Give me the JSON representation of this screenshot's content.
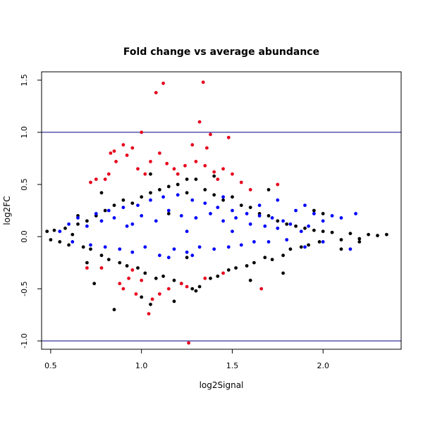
{
  "chart_data": {
    "type": "scatter",
    "title": "Fold change vs average abundance",
    "xlabel": "log2Signal",
    "ylabel": "log2FC",
    "xlim": [
      0.45,
      2.43
    ],
    "ylim": [
      -1.08,
      1.58
    ],
    "x_ticks": [
      0.5,
      1.0,
      1.5,
      2.0
    ],
    "x_tick_labels": [
      "0.5",
      "1.0",
      "1.5",
      "2.0"
    ],
    "y_ticks": [
      -1.0,
      -0.5,
      0.0,
      0.5,
      1.0,
      1.5
    ],
    "y_tick_labels": [
      "-1.0",
      "-0.5",
      "0.0",
      "0.5",
      "1.0",
      "1.5"
    ],
    "grid": false,
    "legend": "none",
    "reference_lines": [
      {
        "axis": "y",
        "value": 1.0,
        "color": "#000080"
      },
      {
        "axis": "y",
        "value": -1.0,
        "color": "#000080"
      }
    ],
    "series": [
      {
        "color": "#000000",
        "points": [
          [
            0.48,
            0.05
          ],
          [
            0.5,
            -0.03
          ],
          [
            0.52,
            0.06
          ],
          [
            0.55,
            -0.05
          ],
          [
            0.58,
            0.08
          ],
          [
            0.6,
            -0.08
          ],
          [
            0.62,
            0.02
          ],
          [
            0.65,
            0.12
          ],
          [
            0.68,
            -0.1
          ],
          [
            0.7,
            0.15
          ],
          [
            0.72,
            -0.12
          ],
          [
            0.75,
            0.2
          ],
          [
            0.78,
            -0.18
          ],
          [
            0.8,
            0.25
          ],
          [
            0.82,
            -0.22
          ],
          [
            0.85,
            0.3
          ],
          [
            0.88,
            -0.25
          ],
          [
            0.9,
            0.35
          ],
          [
            0.92,
            -0.28
          ],
          [
            0.95,
            0.32
          ],
          [
            0.98,
            -0.3
          ],
          [
            1.0,
            0.38
          ],
          [
            1.02,
            -0.35
          ],
          [
            1.05,
            0.42
          ],
          [
            1.08,
            -0.4
          ],
          [
            1.1,
            0.45
          ],
          [
            1.12,
            -0.38
          ],
          [
            1.15,
            0.48
          ],
          [
            1.18,
            -0.42
          ],
          [
            1.2,
            0.5
          ],
          [
            1.22,
            -0.45
          ],
          [
            1.25,
            0.42
          ],
          [
            1.28,
            -0.5
          ],
          [
            1.3,
            0.55
          ],
          [
            1.32,
            -0.48
          ],
          [
            1.35,
            0.45
          ],
          [
            1.38,
            -0.4
          ],
          [
            1.4,
            0.4
          ],
          [
            1.42,
            -0.38
          ],
          [
            1.45,
            0.35
          ],
          [
            1.48,
            -0.32
          ],
          [
            1.5,
            0.38
          ],
          [
            1.52,
            -0.3
          ],
          [
            1.55,
            0.3
          ],
          [
            1.58,
            -0.28
          ],
          [
            1.6,
            0.28
          ],
          [
            1.62,
            -0.25
          ],
          [
            1.65,
            0.22
          ],
          [
            1.68,
            -0.2
          ],
          [
            1.7,
            0.2
          ],
          [
            1.72,
            -0.22
          ],
          [
            1.75,
            0.15
          ],
          [
            1.78,
            -0.18
          ],
          [
            1.8,
            0.12
          ],
          [
            1.82,
            -0.12
          ],
          [
            1.85,
            0.1
          ],
          [
            1.88,
            -0.1
          ],
          [
            1.9,
            0.08
          ],
          [
            1.92,
            -0.08
          ],
          [
            1.95,
            0.06
          ],
          [
            1.98,
            -0.05
          ],
          [
            2.0,
            0.05
          ],
          [
            2.05,
            0.04
          ],
          [
            2.1,
            -0.03
          ],
          [
            2.15,
            0.03
          ],
          [
            2.2,
            -0.02
          ],
          [
            2.25,
            0.02
          ],
          [
            2.3,
            0.01
          ],
          [
            2.35,
            0.02
          ],
          [
            0.85,
            -0.7
          ],
          [
            1.05,
            -0.65
          ],
          [
            1.18,
            -0.62
          ],
          [
            0.74,
            -0.45
          ],
          [
            0.78,
            0.42
          ],
          [
            1.05,
            0.6
          ],
          [
            1.25,
            0.55
          ],
          [
            1.4,
            0.58
          ],
          [
            1.7,
            0.45
          ],
          [
            1.95,
            0.25
          ],
          [
            2.0,
            0.22
          ],
          [
            1.78,
            -0.35
          ],
          [
            1.6,
            -0.42
          ],
          [
            1.3,
            -0.52
          ],
          [
            1.0,
            -0.58
          ],
          [
            2.1,
            -0.12
          ],
          [
            2.2,
            -0.05
          ],
          [
            0.65,
            0.2
          ],
          [
            0.7,
            -0.25
          ],
          [
            1.15,
            0.22
          ],
          [
            1.25,
            -0.2
          ]
        ]
      },
      {
        "color": "#0000ff",
        "points": [
          [
            0.55,
            0.05
          ],
          [
            0.6,
            0.12
          ],
          [
            0.62,
            -0.05
          ],
          [
            0.65,
            0.18
          ],
          [
            0.7,
            0.1
          ],
          [
            0.72,
            -0.08
          ],
          [
            0.75,
            0.22
          ],
          [
            0.78,
            0.15
          ],
          [
            0.8,
            -0.1
          ],
          [
            0.82,
            0.25
          ],
          [
            0.85,
            0.18
          ],
          [
            0.88,
            -0.12
          ],
          [
            0.9,
            0.28
          ],
          [
            0.92,
            0.1
          ],
          [
            0.95,
            -0.15
          ],
          [
            0.98,
            0.3
          ],
          [
            1.0,
            0.2
          ],
          [
            1.02,
            -0.1
          ],
          [
            1.05,
            0.35
          ],
          [
            1.08,
            0.15
          ],
          [
            1.1,
            -0.18
          ],
          [
            1.12,
            0.38
          ],
          [
            1.15,
            0.25
          ],
          [
            1.18,
            -0.12
          ],
          [
            1.2,
            0.4
          ],
          [
            1.22,
            0.2
          ],
          [
            1.25,
            -0.15
          ],
          [
            1.28,
            0.35
          ],
          [
            1.3,
            0.18
          ],
          [
            1.32,
            -0.1
          ],
          [
            1.35,
            0.32
          ],
          [
            1.38,
            0.22
          ],
          [
            1.4,
            -0.12
          ],
          [
            1.42,
            0.28
          ],
          [
            1.45,
            0.15
          ],
          [
            1.48,
            -0.1
          ],
          [
            1.5,
            0.25
          ],
          [
            1.52,
            0.18
          ],
          [
            1.55,
            -0.08
          ],
          [
            1.58,
            0.22
          ],
          [
            1.6,
            0.12
          ],
          [
            1.62,
            -0.05
          ],
          [
            1.65,
            0.2
          ],
          [
            1.68,
            0.1
          ],
          [
            1.7,
            -0.05
          ],
          [
            1.72,
            0.18
          ],
          [
            1.75,
            0.08
          ],
          [
            1.78,
            0.15
          ],
          [
            1.8,
            -0.03
          ],
          [
            1.82,
            0.12
          ],
          [
            1.85,
            0.25
          ],
          [
            1.88,
            0.05
          ],
          [
            1.9,
            0.3
          ],
          [
            1.92,
            0.1
          ],
          [
            1.95,
            0.22
          ],
          [
            2.0,
            0.15
          ],
          [
            2.05,
            0.2
          ],
          [
            2.1,
            0.18
          ],
          [
            2.15,
            -0.12
          ],
          [
            2.18,
            0.22
          ],
          [
            1.75,
            0.35
          ],
          [
            1.65,
            0.3
          ],
          [
            1.45,
            0.38
          ],
          [
            1.15,
            -0.2
          ],
          [
            1.28,
            -0.18
          ],
          [
            1.9,
            -0.1
          ],
          [
            2.0,
            -0.05
          ],
          [
            0.95,
            0.12
          ],
          [
            1.25,
            0.05
          ],
          [
            1.5,
            0.05
          ]
        ]
      },
      {
        "color": "#e8001c",
        "points": [
          [
            0.7,
            -0.3
          ],
          [
            0.72,
            0.52
          ],
          [
            0.75,
            0.55
          ],
          [
            0.78,
            -0.3
          ],
          [
            0.8,
            0.55
          ],
          [
            0.82,
            0.6
          ],
          [
            0.83,
            0.8
          ],
          [
            0.85,
            0.82
          ],
          [
            0.86,
            0.72
          ],
          [
            0.88,
            -0.45
          ],
          [
            0.9,
            0.88
          ],
          [
            0.92,
            0.78
          ],
          [
            0.93,
            -0.4
          ],
          [
            0.95,
            0.85
          ],
          [
            0.97,
            -0.55
          ],
          [
            0.98,
            0.65
          ],
          [
            1.0,
            1.0
          ],
          [
            1.02,
            0.6
          ],
          [
            1.04,
            -0.74
          ],
          [
            1.05,
            0.72
          ],
          [
            1.06,
            -0.6
          ],
          [
            1.08,
            1.38
          ],
          [
            1.1,
            0.8
          ],
          [
            1.12,
            1.47
          ],
          [
            1.14,
            0.7
          ],
          [
            1.15,
            -0.5
          ],
          [
            1.18,
            0.65
          ],
          [
            1.2,
            0.6
          ],
          [
            1.22,
            -0.45
          ],
          [
            1.24,
            0.68
          ],
          [
            1.26,
            -1.02
          ],
          [
            1.28,
            0.88
          ],
          [
            1.3,
            0.72
          ],
          [
            1.32,
            1.1
          ],
          [
            1.34,
            1.48
          ],
          [
            1.35,
            0.68
          ],
          [
            1.36,
            0.85
          ],
          [
            1.38,
            0.98
          ],
          [
            1.4,
            0.62
          ],
          [
            1.42,
            0.55
          ],
          [
            1.45,
            0.65
          ],
          [
            1.48,
            0.95
          ],
          [
            1.5,
            0.6
          ],
          [
            1.55,
            0.52
          ],
          [
            1.6,
            0.45
          ],
          [
            1.66,
            -0.5
          ],
          [
            1.75,
            0.5
          ],
          [
            0.9,
            -0.5
          ],
          [
            1.0,
            -0.42
          ],
          [
            1.1,
            -0.55
          ],
          [
            1.25,
            -0.48
          ],
          [
            1.35,
            -0.4
          ],
          [
            1.45,
            -0.35
          ],
          [
            0.95,
            -0.32
          ]
        ]
      }
    ]
  }
}
